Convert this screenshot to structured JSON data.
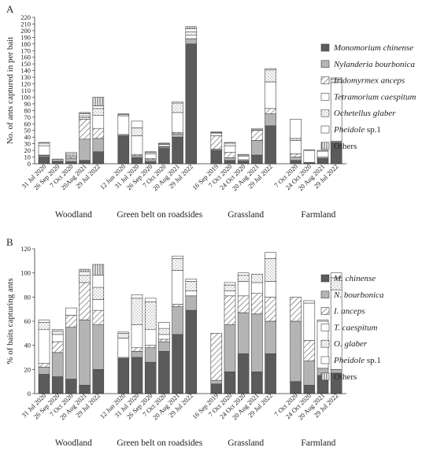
{
  "legend_styles": {
    "mono": {
      "fill": "#5b5b5b",
      "pattern": "none"
    },
    "nyla": {
      "fill": "#b4b4b4",
      "pattern": "none"
    },
    "irid": {
      "fill": "#ffffff",
      "pattern": "diag"
    },
    "tetr": {
      "fill": "#ffffff",
      "pattern": "none"
    },
    "ochi": {
      "fill": "#ffffff",
      "pattern": "dots"
    },
    "phei": {
      "fill": "#ffffff",
      "pattern": "none"
    },
    "othe": {
      "fill": "#ffffff",
      "pattern": "vlines"
    }
  },
  "chart_data": [
    {
      "panel": "A",
      "type": "bar",
      "stacked": true,
      "ylabel": "No. of ants captured in per bait",
      "ylim": [
        0,
        220
      ],
      "yticks": [
        0,
        10,
        20,
        30,
        40,
        50,
        60,
        70,
        80,
        90,
        100,
        110,
        120,
        130,
        140,
        150,
        160,
        170,
        180,
        190,
        200,
        210,
        220
      ],
      "groups": [
        {
          "label": "Woodland",
          "categories": [
            "31 Jul 2020",
            "26 Sep 2020",
            "7 Oct 2020",
            "20Aug 2021",
            "29 Jul 2022"
          ]
        },
        {
          "label": "Green belt  on roadsides",
          "categories": [
            "12 Jun 2020",
            "31 Jul 2020",
            "26 Sep 2020",
            "7 Oct 2020",
            "20 Aug 2021",
            "29 Jul 2022"
          ]
        },
        {
          "label": "Grassland",
          "categories": [
            "16 Sep 2019",
            "7 Oct 2020",
            "24 Oct 2020",
            "20 Aug 2021",
            "29 Jul 2022"
          ]
        },
        {
          "label": "Farmland",
          "categories": [
            "7 Oct 2020",
            "24 Oct 2020",
            "20 Aug 2021",
            "29 Jul 2022"
          ]
        }
      ],
      "series": [
        {
          "name": "Monomorium  chinense",
          "key": "mono",
          "values": [
            10,
            3,
            3,
            5,
            18,
            42,
            9,
            3,
            23,
            40,
            180,
            20,
            5,
            4,
            13,
            57,
            5,
            1,
            8,
            32
          ]
        },
        {
          "name": "Nylanderia bourbonica",
          "key": "nyla",
          "values": [
            2,
            1,
            5,
            32,
            20,
            2,
            3,
            3,
            2,
            5,
            8,
            2,
            4,
            2,
            22,
            18,
            5,
            1,
            2,
            2
          ]
        },
        {
          "name": "Iridomyrmex anceps",
          "key": "irid",
          "values": [
            1,
            0,
            2,
            30,
            15,
            0,
            2,
            2,
            1,
            2,
            0,
            20,
            8,
            0,
            15,
            8,
            5,
            0,
            0,
            0
          ]
        },
        {
          "name": "Tetramorium caespitum",
          "key": "tetr",
          "values": [
            14,
            2,
            2,
            2,
            20,
            28,
            28,
            7,
            3,
            30,
            5,
            4,
            10,
            5,
            1,
            40,
            20,
            18,
            9,
            88
          ]
        },
        {
          "name": "Ochetellus glaber",
          "key": "ochi",
          "values": [
            4,
            0,
            3,
            3,
            10,
            2,
            12,
            2,
            1,
            14,
            5,
            1,
            4,
            2,
            2,
            18,
            3,
            0,
            0,
            5
          ]
        },
        {
          "name": "Pheidole sp.1",
          "key": "phei",
          "values": [
            1,
            1,
            2,
            3,
            4,
            1,
            10,
            1,
            1,
            2,
            5,
            1,
            1,
            1,
            0,
            2,
            29,
            1,
            1,
            2
          ]
        },
        {
          "name": "Others",
          "key": "othe",
          "values": [
            0,
            0,
            0,
            2,
            13,
            0,
            0,
            0,
            0,
            0,
            3,
            0,
            0,
            0,
            0,
            0,
            0,
            0,
            0,
            0
          ]
        }
      ]
    },
    {
      "panel": "B",
      "type": "bar",
      "stacked": true,
      "ylabel": "% of baits capturing ants",
      "ylim": [
        0,
        120
      ],
      "yticks": [
        0,
        20,
        40,
        60,
        80,
        100,
        120
      ],
      "groups": [
        {
          "label": "Woodland",
          "categories": [
            "31 Jul 2020",
            "26 Sep 2020",
            "7 Oct 2020",
            "20 Aug 2021",
            "29 Jul 2022"
          ]
        },
        {
          "label": "Green belt  on roadsides",
          "categories": [
            "12 Jun 2020",
            "31 Jul 2020",
            "26 Sep 2020",
            "7 Oct 2020",
            "20 Aug 2021",
            "29 Jul 2022"
          ]
        },
        {
          "label": "Grassland",
          "categories": [
            "16 Sep 2019",
            "7 Oct 2020",
            "24 Oct 2020",
            "20 Aug 2021",
            "29 Jul 2022"
          ]
        },
        {
          "label": "Farmland",
          "categories": [
            "7 Oct 2020",
            "24 Oct 2020",
            "20 Aug 2021",
            "29 Jul 2022"
          ]
        }
      ],
      "series": [
        {
          "name": "M.  chinense",
          "key": "mono",
          "values": [
            16,
            14,
            12,
            7,
            20,
            29,
            30,
            26,
            35,
            49,
            69,
            8,
            18,
            33,
            18,
            33,
            10,
            7,
            15,
            17
          ]
        },
        {
          "name": "N. bourbonica",
          "key": "nyla",
          "values": [
            6,
            20,
            43,
            54,
            37,
            1,
            5,
            12,
            8,
            23,
            12,
            3,
            39,
            34,
            48,
            27,
            50,
            20,
            6,
            3
          ]
        },
        {
          "name": "I. anceps",
          "key": "irid",
          "values": [
            3,
            9,
            10,
            31,
            12,
            0,
            3,
            2,
            2,
            2,
            0,
            39,
            24,
            14,
            17,
            20,
            20,
            17,
            0,
            0
          ]
        },
        {
          "name": "T. caespitum",
          "key": "tetr",
          "values": [
            28,
            6,
            6,
            0,
            9,
            16,
            19,
            13,
            4,
            28,
            4,
            0,
            4,
            12,
            9,
            13,
            0,
            31,
            39,
            66
          ]
        },
        {
          "name": "O. glaber",
          "key": "ochi",
          "values": [
            6,
            3,
            0,
            6,
            10,
            4,
            22,
            23,
            5,
            10,
            8,
            0,
            5,
            5,
            7,
            19,
            0,
            0,
            0,
            10
          ]
        },
        {
          "name": "Pheidole sp.1",
          "key": "phei",
          "values": [
            2,
            1,
            0,
            3,
            10,
            1,
            3,
            3,
            5,
            2,
            2,
            0,
            2,
            2,
            0,
            5,
            0,
            2,
            1,
            4
          ]
        },
        {
          "name": "Others",
          "key": "othe",
          "values": [
            0,
            0,
            0,
            2,
            9,
            0,
            0,
            0,
            0,
            0,
            0,
            0,
            0,
            0,
            0,
            0,
            0,
            0,
            0,
            0
          ]
        }
      ]
    }
  ]
}
